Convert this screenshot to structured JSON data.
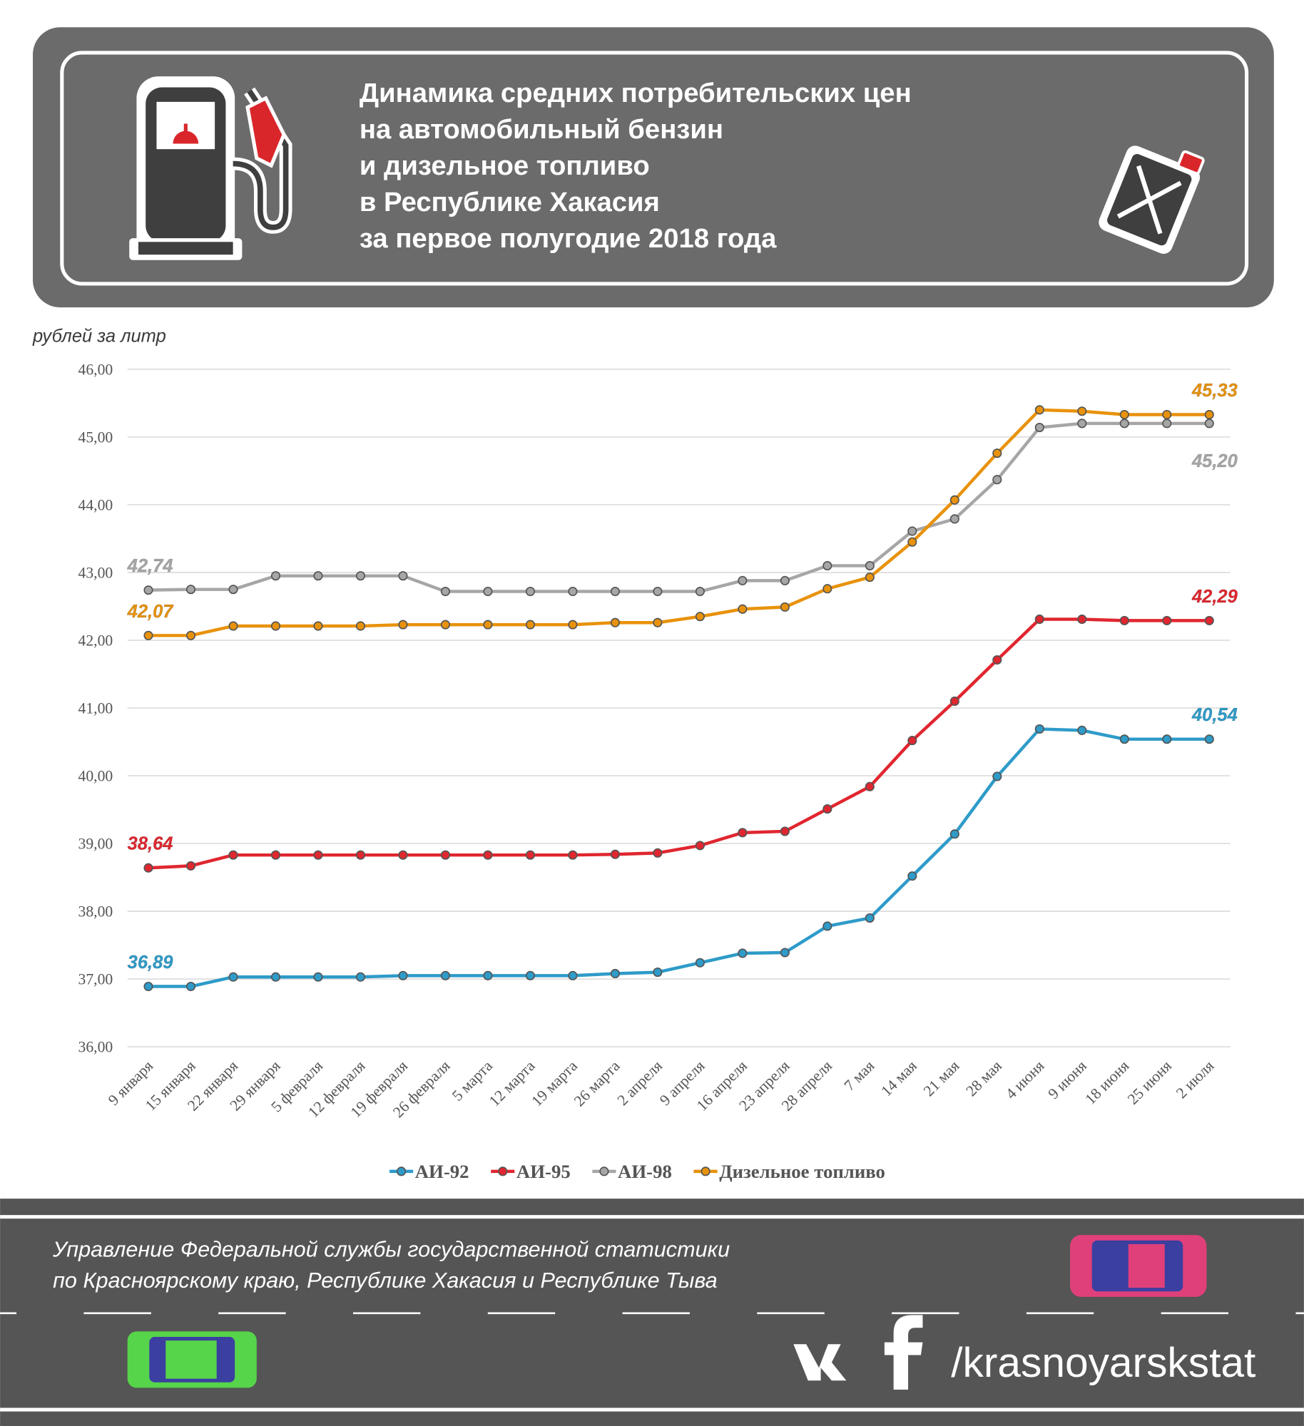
{
  "header": {
    "title_lines": [
      "Динамика средних потребительских цен",
      "на автомобильный бензин",
      "и дизельное топливо",
      "в Республике Хакасия",
      "за первое полугодие 2018 года"
    ]
  },
  "chart_data": {
    "type": "line",
    "y_label": "рублей за литр",
    "categories": [
      "9 января",
      "15 января",
      "22 января",
      "29 января",
      "5 февраля",
      "12 февраля",
      "19 февраля",
      "26 февраля",
      "5 марта",
      "12 марта",
      "19 марта",
      "26 марта",
      "2 апреля",
      "9 апреля",
      "16 апреля",
      "23 апреля",
      "28 апреля",
      "7 мая",
      "14 мая",
      "21 мая",
      "28 мая",
      "4 июня",
      "9 июня",
      "18 июня",
      "25 июня",
      "2 июля"
    ],
    "ylim": [
      36,
      46
    ],
    "yticks": [
      {
        "value": 36,
        "label": "36,00"
      },
      {
        "value": 37,
        "label": "37,00"
      },
      {
        "value": 38,
        "label": "38,00"
      },
      {
        "value": 39,
        "label": "39,00"
      },
      {
        "value": 40,
        "label": "40,00"
      },
      {
        "value": 41,
        "label": "41,00"
      },
      {
        "value": 42,
        "label": "42,00"
      },
      {
        "value": 43,
        "label": "43,00"
      },
      {
        "value": 44,
        "label": "44,00"
      },
      {
        "value": 45,
        "label": "45,00"
      },
      {
        "value": 46,
        "label": "46,00"
      }
    ],
    "grid": true,
    "legend": "bottom",
    "series": [
      {
        "name": "АИ-92",
        "color": "#2e9bc9",
        "values": [
          36.89,
          36.89,
          37.03,
          37.03,
          37.03,
          37.03,
          37.05,
          37.05,
          37.05,
          37.05,
          37.05,
          37.08,
          37.1,
          37.24,
          37.38,
          37.39,
          37.78,
          37.9,
          38.52,
          39.14,
          39.99,
          40.69,
          40.67,
          40.54,
          40.54,
          40.54
        ],
        "value_labels": [
          "36,89",
          null,
          null,
          null,
          null,
          null,
          null,
          null,
          null,
          null,
          null,
          null,
          null,
          null,
          null,
          null,
          null,
          null,
          null,
          null,
          null,
          null,
          null,
          null,
          null,
          "40,54"
        ]
      },
      {
        "name": "АИ-95",
        "color": "#e0262f",
        "values": [
          38.64,
          38.67,
          38.83,
          38.83,
          38.83,
          38.83,
          38.83,
          38.83,
          38.83,
          38.83,
          38.83,
          38.84,
          38.86,
          38.97,
          39.16,
          39.18,
          39.51,
          39.84,
          40.52,
          41.1,
          41.71,
          42.31,
          42.31,
          42.29,
          42.29,
          42.29
        ],
        "value_labels": [
          "38,64",
          null,
          null,
          null,
          null,
          null,
          null,
          null,
          null,
          null,
          null,
          null,
          null,
          null,
          null,
          null,
          null,
          null,
          null,
          null,
          null,
          null,
          null,
          null,
          null,
          "42,29"
        ]
      },
      {
        "name": "АИ-98",
        "color": "#a6a6a6",
        "values": [
          42.74,
          42.75,
          42.75,
          42.95,
          42.95,
          42.95,
          42.95,
          42.72,
          42.72,
          42.72,
          42.72,
          42.72,
          42.72,
          42.72,
          42.88,
          42.88,
          43.1,
          43.1,
          43.61,
          43.79,
          44.37,
          45.14,
          45.2,
          45.2,
          45.2,
          45.2
        ],
        "value_labels": [
          "42,74",
          null,
          null,
          null,
          null,
          null,
          null,
          null,
          null,
          null,
          null,
          null,
          null,
          null,
          null,
          null,
          null,
          null,
          null,
          null,
          null,
          null,
          null,
          null,
          null,
          "45,20"
        ]
      },
      {
        "name": "Дизельное топливо",
        "color": "#e8920c",
        "values": [
          42.07,
          42.07,
          42.21,
          42.21,
          42.21,
          42.21,
          42.23,
          42.23,
          42.23,
          42.23,
          42.23,
          42.26,
          42.26,
          42.35,
          42.46,
          42.49,
          42.76,
          42.93,
          43.45,
          44.07,
          44.76,
          45.4,
          45.38,
          45.33,
          45.33,
          45.33
        ],
        "value_labels": [
          "42,07",
          null,
          null,
          null,
          null,
          null,
          null,
          null,
          null,
          null,
          null,
          null,
          null,
          null,
          null,
          null,
          null,
          null,
          null,
          null,
          null,
          null,
          null,
          null,
          null,
          "45,33"
        ]
      }
    ]
  },
  "footer": {
    "org_lines": [
      "Управление Федеральной службы государственной статистики",
      "по Красноярскому краю, Республике Хакасия и Республике Тыва"
    ],
    "handle": "/krasnoyarskstat"
  }
}
